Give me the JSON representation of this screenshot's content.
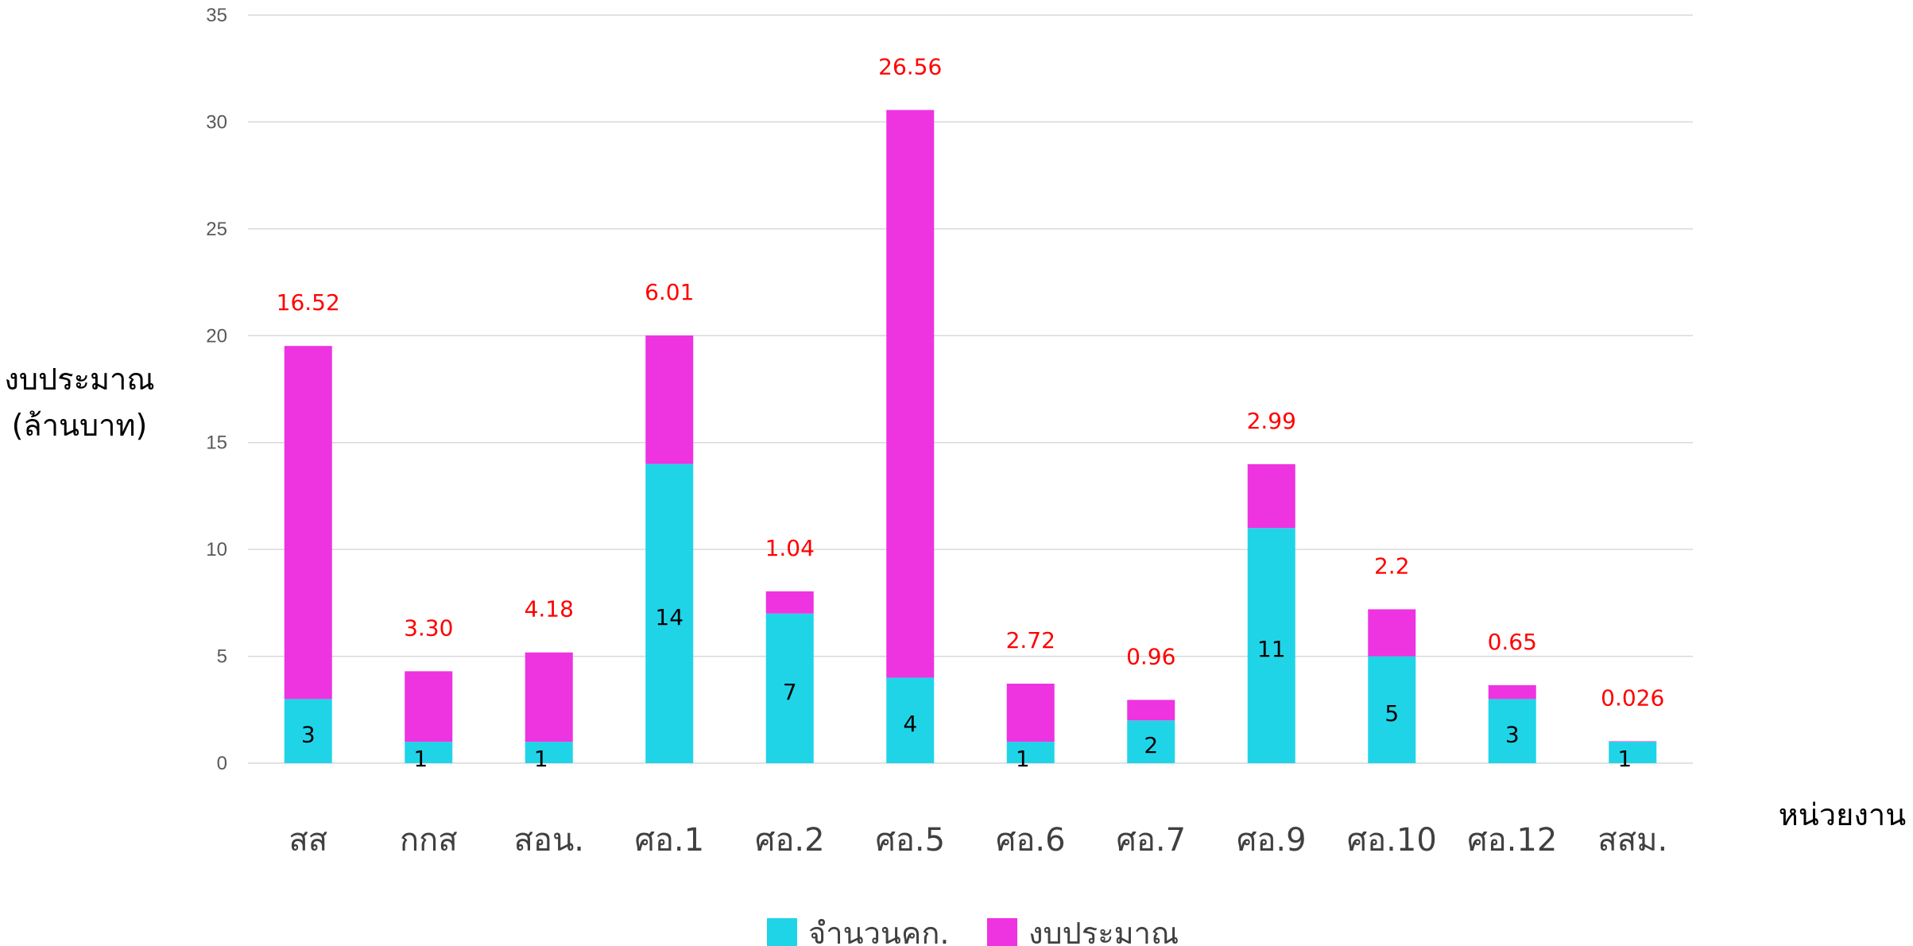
{
  "chart_data": {
    "type": "bar",
    "stacked": true,
    "categories": [
      "สส",
      "กกส",
      "สอน.",
      "ศอ.1",
      "ศอ.2",
      "ศอ.5",
      "ศอ.6",
      "ศอ.7",
      "ศอ.9",
      "ศอ.10",
      "ศอ.12",
      "สสม."
    ],
    "series": [
      {
        "name": "จำนวนคก.",
        "color": "#20d4e8",
        "values": [
          3,
          1,
          1,
          14,
          7,
          4,
          1,
          2,
          11,
          5,
          3,
          1
        ],
        "labels": [
          "3",
          "1",
          "1",
          "14",
          "7",
          "4",
          "1",
          "2",
          "11",
          "5",
          "3",
          "1"
        ]
      },
      {
        "name": "งบประมาณ",
        "color": "#ee33e0",
        "values": [
          16.52,
          3.3,
          4.18,
          6.01,
          1.04,
          26.56,
          2.72,
          0.96,
          2.99,
          2.2,
          0.65,
          0.026
        ],
        "labels": [
          "16.52",
          "3.30",
          "4.18",
          "6.01",
          "1.04",
          "26.56",
          "2.72",
          "0.96",
          "2.99",
          "2.2",
          "0.65",
          "0.026"
        ]
      }
    ],
    "title": "",
    "xlabel": "หน่วยงาน",
    "ylabel_lines": [
      "งบประมาณ",
      "(ล้านบาท)"
    ],
    "ylim": [
      0,
      35
    ],
    "yticks": [
      0,
      5,
      10,
      15,
      20,
      25,
      30,
      35
    ],
    "grid": true,
    "legend_position": "bottom",
    "budget_label_color": "#ff0000"
  }
}
